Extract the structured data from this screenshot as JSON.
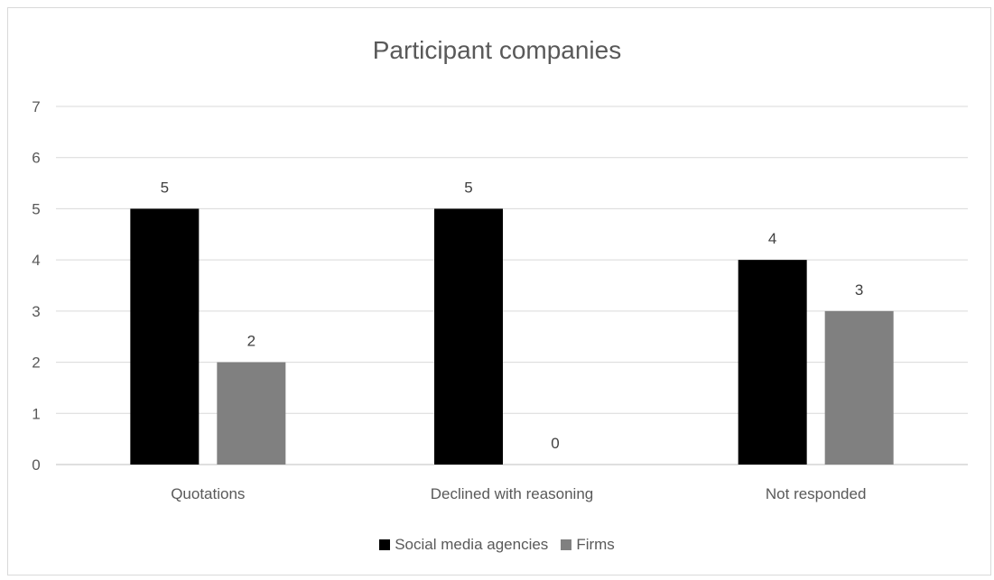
{
  "chart_data": {
    "type": "bar",
    "title": "Participant companies",
    "categories": [
      "Quotations",
      "Declined with reasoning",
      "Not responded"
    ],
    "series": [
      {
        "name": "Social media agencies",
        "values": [
          5,
          5,
          4
        ],
        "color": "#000000"
      },
      {
        "name": "Firms",
        "values": [
          2,
          0,
          3
        ],
        "color": "#808080"
      }
    ],
    "ylim": [
      0,
      7
    ],
    "yticks": [
      0,
      1,
      2,
      3,
      4,
      5,
      6,
      7
    ],
    "grid": true,
    "legend_position": "bottom",
    "xlabel": "",
    "ylabel": ""
  }
}
